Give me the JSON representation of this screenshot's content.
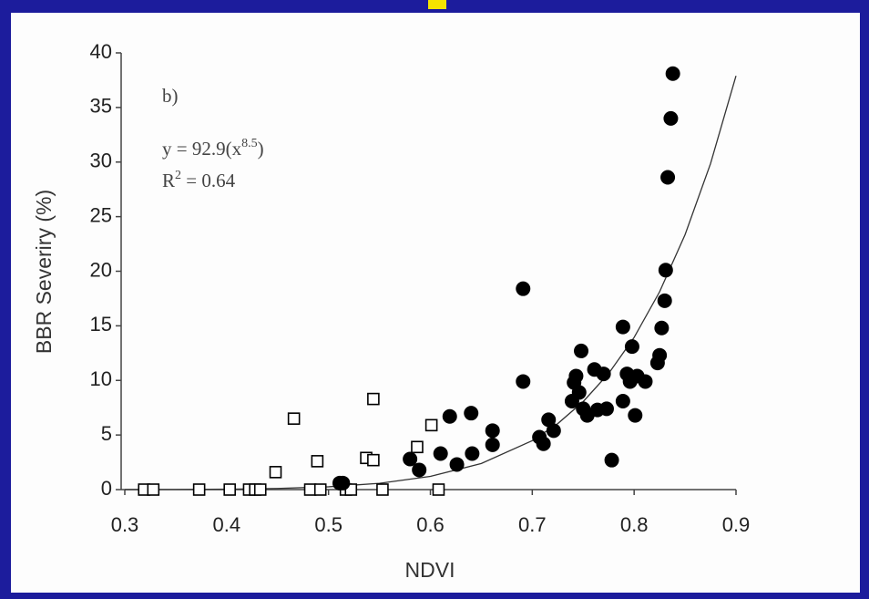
{
  "chart_data": {
    "type": "scatter",
    "ylabel": "BBR Severiry (%)",
    "xlabel": "NDVI",
    "panel_label": "b)",
    "equation": {
      "text": "y = 92.9(x",
      "superscript": "8.5",
      "close": ")"
    },
    "r_squared": {
      "text": "R",
      "superscript": "2",
      "close": " = 0.64"
    },
    "xlim": [
      0.3,
      0.9
    ],
    "ylim": [
      0,
      40
    ],
    "xticks": [
      0.3,
      0.4,
      0.5,
      0.6,
      0.7,
      0.8,
      0.9
    ],
    "yticks": [
      0,
      5,
      10,
      15,
      20,
      25,
      30,
      35,
      40
    ],
    "series": [
      {
        "marker": "square",
        "filled": false,
        "color": "#000000",
        "x": [
          0.319,
          0.328,
          0.373,
          0.403,
          0.422,
          0.428,
          0.433,
          0.448,
          0.466,
          0.482,
          0.489,
          0.492,
          0.517,
          0.522,
          0.537,
          0.544,
          0.544,
          0.553,
          0.587,
          0.601,
          0.608
        ],
        "values": [
          0,
          0,
          0,
          0,
          0,
          0,
          0,
          1.6,
          6.5,
          0,
          2.6,
          0,
          0,
          0,
          2.9,
          2.7,
          8.3,
          0,
          3.9,
          5.9,
          0
        ]
      },
      {
        "marker": "circle",
        "filled": true,
        "color": "#000000",
        "x": [
          0.511,
          0.514,
          0.58,
          0.589,
          0.61,
          0.619,
          0.626,
          0.64,
          0.641,
          0.661,
          0.661,
          0.691,
          0.691,
          0.707,
          0.711,
          0.716,
          0.721,
          0.739,
          0.741,
          0.743,
          0.746,
          0.748,
          0.75,
          0.754,
          0.761,
          0.764,
          0.77,
          0.773,
          0.778,
          0.789,
          0.789,
          0.793,
          0.796,
          0.798,
          0.801,
          0.803,
          0.811,
          0.823,
          0.825,
          0.827,
          0.83,
          0.831,
          0.833,
          0.836,
          0.838
        ],
        "values": [
          0.6,
          0.6,
          2.8,
          1.8,
          3.3,
          6.7,
          2.3,
          7.0,
          3.3,
          5.4,
          4.1,
          18.4,
          9.9,
          4.8,
          4.2,
          6.4,
          5.4,
          8.1,
          9.8,
          10.4,
          8.9,
          12.7,
          7.4,
          6.8,
          11.0,
          7.3,
          10.6,
          7.4,
          2.7,
          14.9,
          8.1,
          10.6,
          9.9,
          13.1,
          6.8,
          10.4,
          9.9,
          11.6,
          12.3,
          14.8,
          17.3,
          20.1,
          28.6,
          34.0,
          38.1
        ]
      }
    ],
    "fit_line": {
      "color": "#333333",
      "x": [
        0.3,
        0.35,
        0.4,
        0.45,
        0.5,
        0.55,
        0.6,
        0.65,
        0.7,
        0.725,
        0.75,
        0.775,
        0.8,
        0.825,
        0.85,
        0.875,
        0.9
      ],
      "values": [
        0.0033,
        0.012,
        0.038,
        0.105,
        0.256,
        0.577,
        1.21,
        2.39,
        4.48,
        6.04,
        8.06,
        10.64,
        13.94,
        18.12,
        23.35,
        29.86,
        37.9
      ]
    }
  }
}
